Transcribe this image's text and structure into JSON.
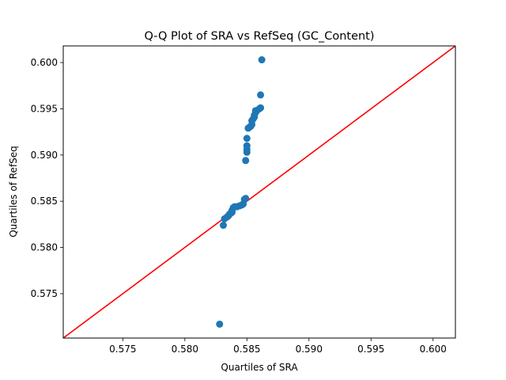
{
  "chart_data": {
    "type": "scatter",
    "title": "Q-Q Plot of SRA vs RefSeq (GC_Content)",
    "xlabel": "Quartiles of SRA",
    "ylabel": "Quartiles of RefSeq",
    "xlim": [
      0.5702,
      0.6018
    ],
    "ylim": [
      0.5702,
      0.6018
    ],
    "xticks": [
      0.575,
      0.58,
      0.585,
      0.59,
      0.595,
      0.6
    ],
    "yticks": [
      0.575,
      0.58,
      0.585,
      0.59,
      0.595,
      0.6
    ],
    "grid": false,
    "reference_line": {
      "from": [
        0.5702,
        0.5702
      ],
      "to": [
        0.6018,
        0.6018
      ],
      "color": "#ff0000"
    },
    "marker_color": "#1f77b4",
    "points": [
      {
        "x": 0.5828,
        "y": 0.5717
      },
      {
        "x": 0.5831,
        "y": 0.5824
      },
      {
        "x": 0.5832,
        "y": 0.5831
      },
      {
        "x": 0.5834,
        "y": 0.5833
      },
      {
        "x": 0.5835,
        "y": 0.5834
      },
      {
        "x": 0.5836,
        "y": 0.5836
      },
      {
        "x": 0.5837,
        "y": 0.5837
      },
      {
        "x": 0.5838,
        "y": 0.5838
      },
      {
        "x": 0.5838,
        "y": 0.584
      },
      {
        "x": 0.5839,
        "y": 0.5843
      },
      {
        "x": 0.584,
        "y": 0.5844
      },
      {
        "x": 0.5842,
        "y": 0.5844
      },
      {
        "x": 0.5844,
        "y": 0.5845
      },
      {
        "x": 0.5846,
        "y": 0.5846
      },
      {
        "x": 0.5847,
        "y": 0.5847
      },
      {
        "x": 0.5848,
        "y": 0.5852
      },
      {
        "x": 0.5849,
        "y": 0.5853
      },
      {
        "x": 0.5849,
        "y": 0.5894
      },
      {
        "x": 0.585,
        "y": 0.5903
      },
      {
        "x": 0.585,
        "y": 0.5906
      },
      {
        "x": 0.585,
        "y": 0.591
      },
      {
        "x": 0.585,
        "y": 0.5918
      },
      {
        "x": 0.5851,
        "y": 0.5929
      },
      {
        "x": 0.5852,
        "y": 0.593
      },
      {
        "x": 0.5853,
        "y": 0.5931
      },
      {
        "x": 0.5854,
        "y": 0.5933
      },
      {
        "x": 0.5854,
        "y": 0.5937
      },
      {
        "x": 0.5855,
        "y": 0.5939
      },
      {
        "x": 0.5856,
        "y": 0.5941
      },
      {
        "x": 0.5856,
        "y": 0.5943
      },
      {
        "x": 0.5857,
        "y": 0.5946
      },
      {
        "x": 0.5857,
        "y": 0.5948
      },
      {
        "x": 0.5858,
        "y": 0.5948
      },
      {
        "x": 0.586,
        "y": 0.595
      },
      {
        "x": 0.5861,
        "y": 0.5951
      },
      {
        "x": 0.5861,
        "y": 0.5965
      },
      {
        "x": 0.5862,
        "y": 0.6003
      }
    ]
  }
}
